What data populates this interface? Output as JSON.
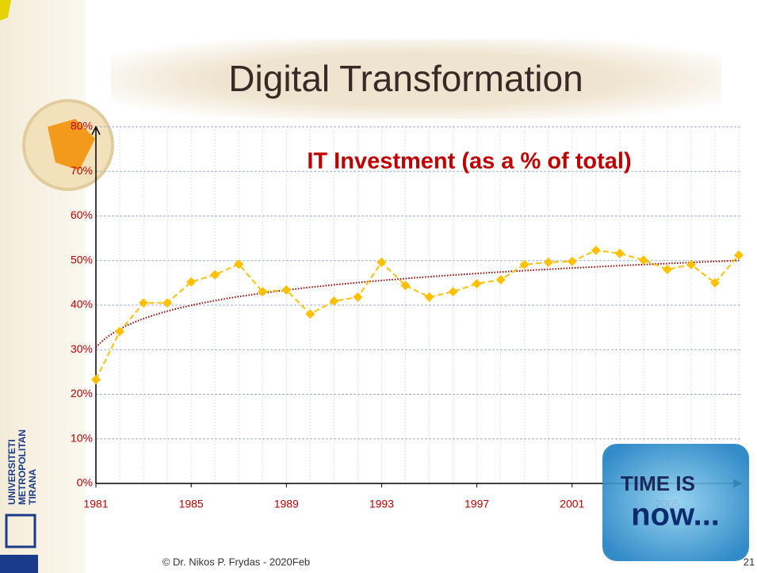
{
  "slide": {
    "title": "Digital Transformation",
    "footer": "© Dr. Nikos P. Frydas - 2020Feb",
    "page": "21",
    "university": [
      "UNIVERSITETI",
      "METROPOLITAN",
      "TIRANA"
    ],
    "badge": [
      "TIME IS",
      "now..."
    ]
  },
  "chart_data": {
    "type": "line",
    "title": "IT Investment (as a % of total)",
    "title_color": "#c00000",
    "x": [
      1981,
      1982,
      1983,
      1984,
      1985,
      1986,
      1987,
      1988,
      1989,
      1990,
      1991,
      1992,
      1993,
      1994,
      1995,
      1996,
      1997,
      1998,
      1999,
      2000,
      2001,
      2002,
      2003,
      2004,
      2005,
      2006,
      2007,
      2008
    ],
    "series": [
      {
        "color": "#ffc000",
        "values": [
          23.3,
          34.1,
          40.5,
          40.5,
          45.2,
          46.8,
          49.2,
          43,
          43.4,
          38,
          40.9,
          41.8,
          49.6,
          44.4,
          41.8,
          43,
          44.8,
          45.7,
          49.1,
          49.6,
          49.8,
          52.3,
          51.6,
          50.1,
          48,
          49.1,
          45,
          51.2
        ]
      }
    ],
    "trendline": {
      "type": "logarithmic",
      "color": "#a00000"
    },
    "xlim": [
      1981,
      2008
    ],
    "xticks": [
      1981,
      1985,
      1989,
      1993,
      1997,
      2001,
      2005
    ],
    "ylim": [
      0,
      80
    ],
    "yticks": [
      {
        "value": 0,
        "label": "0%"
      },
      {
        "value": 10,
        "label": "10%"
      },
      {
        "value": 20,
        "label": "20%"
      },
      {
        "value": 30,
        "label": "30%"
      },
      {
        "value": 40,
        "label": "40%"
      },
      {
        "value": 50,
        "label": "50%"
      },
      {
        "value": 60,
        "label": "60%"
      },
      {
        "value": 70,
        "label": "70%"
      },
      {
        "value": 80,
        "label": "80%"
      }
    ],
    "grid": true,
    "label_color": "#c00000"
  }
}
